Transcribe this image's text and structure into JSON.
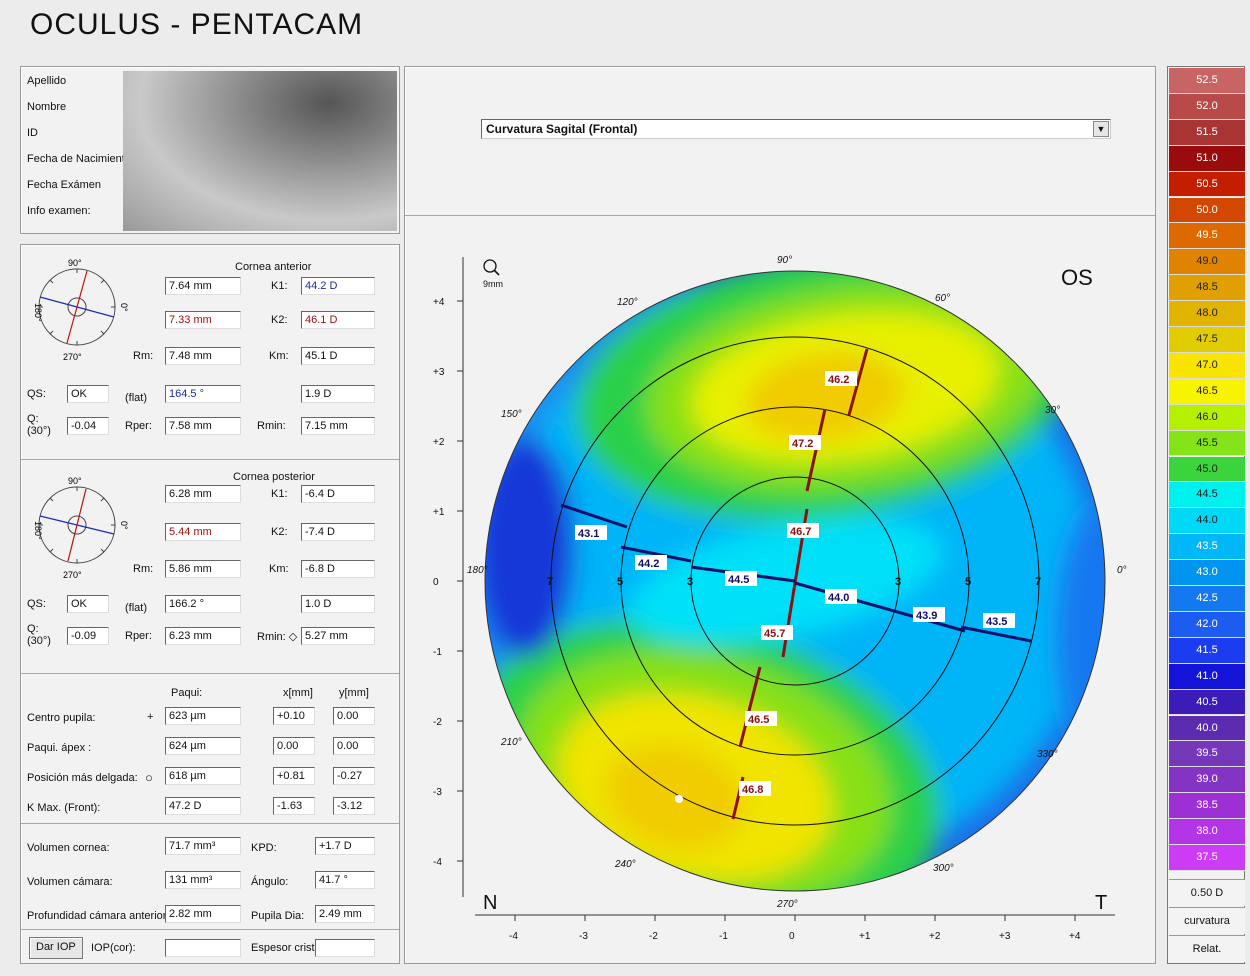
{
  "app": {
    "title": "OCULUS - PENTACAM"
  },
  "patient": {
    "labels": [
      "Apellido",
      "Nombre",
      "ID",
      "Fecha de Nacimiento",
      "Fecha Exámen",
      "Info examen:"
    ]
  },
  "anterior": {
    "header": "Cornea anterior",
    "axis_90": "90°",
    "axis_180": "180°",
    "axis_0": "0°",
    "axis_270": "270°",
    "r1": "7.64 mm",
    "k1_label": "K1:",
    "k1": "44.2 D",
    "r2": "7.33 mm",
    "k2_label": "K2:",
    "k2": "46.1 D",
    "rm_label": "Rm:",
    "rm": "7.48 mm",
    "km_label": "Km:",
    "km": "45.1 D",
    "qs_label": "QS:",
    "qs": "OK",
    "flat_label": "(flat)",
    "axis": "164.5 °",
    "astig": "1.9 D",
    "q_label": "Q:",
    "q_sub": "(30°)",
    "q": "-0.04",
    "rper_label": "Rper:",
    "rper": "7.58 mm",
    "rmin_label": "Rmin:",
    "rmin": "7.15 mm"
  },
  "posterior": {
    "header": "Cornea posterior",
    "axis_90": "90°",
    "axis_180": "180°",
    "axis_0": "0°",
    "axis_270": "270°",
    "r1": "6.28 mm",
    "k1_label": "K1:",
    "k1": "-6.4 D",
    "r2": "5.44 mm",
    "k2_label": "K2:",
    "k2": "-7.4 D",
    "rm_label": "Rm:",
    "rm": "5.86 mm",
    "km_label": "Km:",
    "km": "-6.8 D",
    "qs_label": "QS:",
    "qs": "OK",
    "flat_label": "(flat)",
    "axis": "166.2 °",
    "astig": "1.0 D",
    "q_label": "Q:",
    "q_sub": "(30°)",
    "q": "-0.09",
    "rper_label": "Rper:",
    "rper": "6.23 mm",
    "rmin_label": "Rmin: ◇",
    "rmin": "5.27 mm"
  },
  "pachy": {
    "col_paqui": "Paqui:",
    "col_x": "x[mm]",
    "col_y": "y[mm]",
    "rows": [
      {
        "label": "Centro pupila:",
        "sym": "+",
        "val": "623 µm",
        "x": "+0.10",
        "y": "0.00"
      },
      {
        "label": "Paqui. ápex :",
        "sym": "",
        "val": "624 µm",
        "x": "0.00",
        "y": "0.00"
      },
      {
        "label": "Posición más delgada:",
        "sym": "○",
        "val": "618 µm",
        "x": "+0.81",
        "y": "-0.27"
      },
      {
        "label": "K Max. (Front):",
        "sym": "",
        "val": "47.2 D",
        "x": "-1.63",
        "y": "-3.12"
      }
    ]
  },
  "volume": {
    "vol_cornea_label": "Volumen cornea:",
    "vol_cornea": "71.7 mm³",
    "kpd_label": "KPD:",
    "kpd": "+1.7 D",
    "vol_camara_label": "Volumen cámara:",
    "vol_camara": "131 mm³",
    "angulo_label": "Ángulo:",
    "angulo": "41.7 °",
    "prof_label": "Profundidad cámara anterior (I",
    "prof": "2.82 mm",
    "pupila_label": "Pupila Dia:",
    "pupila": "2.49 mm",
    "iop_button": "Dar IOP",
    "iop_label": "IOP(cor):",
    "iop": "",
    "espesor_label": "Espesor crista",
    "espesor": ""
  },
  "map": {
    "dropdown": "Curvatura Sagital (Frontal)",
    "eye": "OS",
    "nasal": "N",
    "temporal": "T",
    "zoom": "9mm",
    "y_ticks": [
      "+4",
      "+3",
      "+2",
      "+1",
      "0",
      "-1",
      "-2",
      "-3",
      "-4"
    ],
    "x_ticks": [
      "-4",
      "-3",
      "-2",
      "-1",
      "0",
      "+1",
      "+2",
      "+3",
      "+4"
    ],
    "angle_labels": [
      "90°",
      "60°",
      "30°",
      "0°",
      "330°",
      "300°",
      "270°",
      "240°",
      "210°",
      "180°",
      "150°",
      "120°"
    ],
    "ring_labels": [
      "7",
      "5",
      "3",
      "3",
      "5",
      "7"
    ],
    "steep_values": [
      "46.2",
      "47.2",
      "46.7",
      "45.7",
      "46.5",
      "46.8"
    ],
    "flat_values": [
      "43.1",
      "44.2",
      "44.5",
      "44.0",
      "43.9",
      "43.5"
    ],
    "colors": {
      "steep": "#8b1010",
      "flat": "#10106a"
    }
  },
  "scale": {
    "values": [
      "52.5",
      "52.0",
      "51.5",
      "51.0",
      "50.5",
      "50.0",
      "49.5",
      "49.0",
      "48.5",
      "48.0",
      "47.5",
      "47.0",
      "46.5",
      "46.0",
      "45.5",
      "45.0",
      "44.5",
      "44.0",
      "43.5",
      "43.0",
      "42.5",
      "42.0",
      "41.5",
      "41.0",
      "40.5",
      "40.0",
      "39.5",
      "39.0",
      "38.5",
      "38.0",
      "37.5"
    ],
    "colors": [
      "#c86464",
      "#b84a4a",
      "#a83434",
      "#9a0c0c",
      "#c41e00",
      "#d24800",
      "#dc6a00",
      "#e08400",
      "#e0a000",
      "#e0b400",
      "#e0cc00",
      "#f8e400",
      "#f8f400",
      "#b4f000",
      "#84e418",
      "#3cd43c",
      "#00f0f0",
      "#00d8f8",
      "#00b8f8",
      "#0094f0",
      "#1478f0",
      "#1c5cf0",
      "#1c3cf0",
      "#1414d8",
      "#3c1cb8",
      "#5c2cb0",
      "#7438b8",
      "#8434c4",
      "#9c30d4",
      "#b434e8",
      "#cc3cf4"
    ],
    "step": "0.50 D",
    "mode": "curvatura",
    "rel": "Relat."
  }
}
